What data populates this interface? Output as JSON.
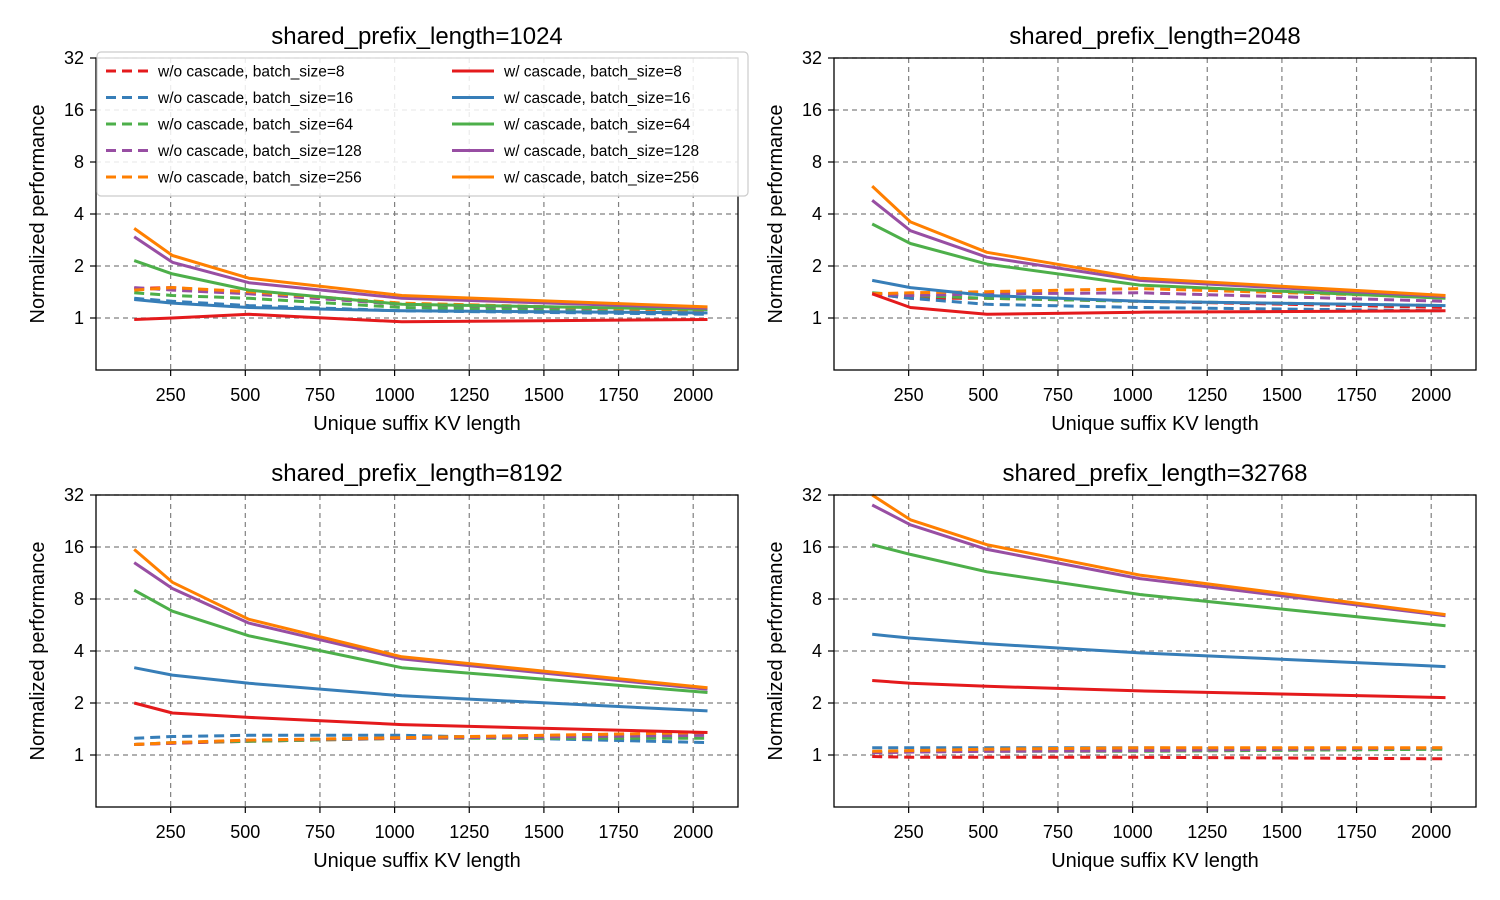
{
  "figure": {
    "colors": {
      "bs8": "#e41a1c",
      "bs16": "#377eb8",
      "bs64": "#4daf4a",
      "bs128": "#984ea3",
      "bs256": "#ff7f00",
      "grid": "#808080"
    },
    "legend": {
      "placement": "top-left of first panel",
      "entries": [
        {
          "label": "w/o cascade, batch_size=8",
          "color": "#e41a1c",
          "style": "dashed"
        },
        {
          "label": "w/o cascade, batch_size=16",
          "color": "#377eb8",
          "style": "dashed"
        },
        {
          "label": "w/o cascade, batch_size=64",
          "color": "#4daf4a",
          "style": "dashed"
        },
        {
          "label": "w/o cascade, batch_size=128",
          "color": "#984ea3",
          "style": "dashed"
        },
        {
          "label": "w/o cascade, batch_size=256",
          "color": "#ff7f00",
          "style": "dashed"
        },
        {
          "label": "w/ cascade, batch_size=8",
          "color": "#e41a1c",
          "style": "solid"
        },
        {
          "label": "w/ cascade, batch_size=16",
          "color": "#377eb8",
          "style": "solid"
        },
        {
          "label": "w/ cascade, batch_size=64",
          "color": "#4daf4a",
          "style": "solid"
        },
        {
          "label": "w/ cascade, batch_size=128",
          "color": "#984ea3",
          "style": "solid"
        },
        {
          "label": "w/ cascade, batch_size=256",
          "color": "#ff7f00",
          "style": "solid"
        }
      ]
    }
  },
  "chart_data": [
    {
      "type": "line",
      "title": "shared_prefix_length=1024",
      "xlabel": "Unique suffix KV length",
      "ylabel": "Normalized performance",
      "yscale": "log2",
      "ylim": [
        0.5,
        32
      ],
      "xlim": [
        0,
        2150
      ],
      "xticks": [
        250,
        500,
        750,
        1000,
        1250,
        1500,
        1750,
        2000
      ],
      "yticks": [
        1,
        2,
        4,
        8,
        16,
        32
      ],
      "grid": true,
      "x": [
        128,
        256,
        512,
        1024,
        2048
      ],
      "series": [
        {
          "name": "w/o cascade, batch_size=8",
          "values": [
            1.48,
            1.5,
            1.4,
            1.2,
            1.07
          ]
        },
        {
          "name": "w/o cascade, batch_size=16",
          "values": [
            1.3,
            1.25,
            1.18,
            1.1,
            1.05
          ]
        },
        {
          "name": "w/o cascade, batch_size=64",
          "values": [
            1.4,
            1.35,
            1.3,
            1.15,
            1.08
          ]
        },
        {
          "name": "w/o cascade, batch_size=128",
          "values": [
            1.5,
            1.45,
            1.38,
            1.2,
            1.1
          ]
        },
        {
          "name": "w/o cascade, batch_size=256",
          "values": [
            1.45,
            1.5,
            1.42,
            1.22,
            1.1
          ]
        },
        {
          "name": "w/ cascade, batch_size=8",
          "values": [
            0.98,
            1.0,
            1.05,
            0.95,
            0.98
          ]
        },
        {
          "name": "w/ cascade, batch_size=16",
          "values": [
            1.28,
            1.22,
            1.15,
            1.1,
            1.07
          ]
        },
        {
          "name": "w/ cascade, batch_size=64",
          "values": [
            2.15,
            1.8,
            1.45,
            1.2,
            1.12
          ]
        },
        {
          "name": "w/ cascade, batch_size=128",
          "values": [
            2.95,
            2.1,
            1.6,
            1.3,
            1.14
          ]
        },
        {
          "name": "w/ cascade, batch_size=256",
          "values": [
            3.3,
            2.3,
            1.7,
            1.35,
            1.16
          ]
        }
      ]
    },
    {
      "type": "line",
      "title": "shared_prefix_length=2048",
      "xlabel": "Unique suffix KV length",
      "ylabel": "Normalized performance",
      "yscale": "log2",
      "ylim": [
        0.5,
        32
      ],
      "xlim": [
        0,
        2150
      ],
      "xticks": [
        250,
        500,
        750,
        1000,
        1250,
        1500,
        1750,
        2000
      ],
      "yticks": [
        1,
        2,
        4,
        8,
        16,
        32
      ],
      "grid": true,
      "x": [
        128,
        256,
        512,
        1024,
        2048
      ],
      "series": [
        {
          "name": "w/o cascade, batch_size=8",
          "values": [
            1.38,
            1.3,
            1.3,
            1.25,
            1.15
          ]
        },
        {
          "name": "w/o cascade, batch_size=16",
          "values": [
            1.38,
            1.3,
            1.2,
            1.15,
            1.1
          ]
        },
        {
          "name": "w/o cascade, batch_size=64",
          "values": [
            1.4,
            1.35,
            1.3,
            1.25,
            1.18
          ]
        },
        {
          "name": "w/o cascade, batch_size=128",
          "values": [
            1.38,
            1.35,
            1.38,
            1.4,
            1.25
          ]
        },
        {
          "name": "w/o cascade, batch_size=256",
          "values": [
            1.38,
            1.4,
            1.42,
            1.48,
            1.32
          ]
        },
        {
          "name": "w/ cascade, batch_size=8",
          "values": [
            1.38,
            1.15,
            1.05,
            1.08,
            1.1
          ]
        },
        {
          "name": "w/ cascade, batch_size=16",
          "values": [
            1.65,
            1.5,
            1.35,
            1.25,
            1.18
          ]
        },
        {
          "name": "w/ cascade, batch_size=64",
          "values": [
            3.5,
            2.7,
            2.05,
            1.55,
            1.3
          ]
        },
        {
          "name": "w/ cascade, batch_size=128",
          "values": [
            4.8,
            3.2,
            2.25,
            1.65,
            1.33
          ]
        },
        {
          "name": "w/ cascade, batch_size=256",
          "values": [
            5.8,
            3.6,
            2.4,
            1.7,
            1.35
          ]
        }
      ]
    },
    {
      "type": "line",
      "title": "shared_prefix_length=8192",
      "xlabel": "Unique suffix KV length",
      "ylabel": "Normalized performance",
      "yscale": "log2",
      "ylim": [
        0.5,
        32
      ],
      "xlim": [
        0,
        2150
      ],
      "xticks": [
        250,
        500,
        750,
        1000,
        1250,
        1500,
        1750,
        2000
      ],
      "yticks": [
        1,
        2,
        4,
        8,
        16,
        32
      ],
      "grid": true,
      "x": [
        128,
        256,
        512,
        1024,
        2048
      ],
      "series": [
        {
          "name": "w/o cascade, batch_size=8",
          "values": [
            1.15,
            1.17,
            1.2,
            1.25,
            1.35
          ]
        },
        {
          "name": "w/o cascade, batch_size=16",
          "values": [
            1.25,
            1.28,
            1.3,
            1.3,
            1.18
          ]
        },
        {
          "name": "w/o cascade, batch_size=64",
          "values": [
            1.15,
            1.18,
            1.2,
            1.25,
            1.25
          ]
        },
        {
          "name": "w/o cascade, batch_size=128",
          "values": [
            1.15,
            1.17,
            1.22,
            1.25,
            1.3
          ]
        },
        {
          "name": "w/o cascade, batch_size=256",
          "values": [
            1.15,
            1.18,
            1.22,
            1.26,
            1.35
          ]
        },
        {
          "name": "w/ cascade, batch_size=8",
          "values": [
            2.0,
            1.75,
            1.65,
            1.5,
            1.35
          ]
        },
        {
          "name": "w/ cascade, batch_size=16",
          "values": [
            3.2,
            2.9,
            2.6,
            2.2,
            1.8
          ]
        },
        {
          "name": "w/ cascade, batch_size=64",
          "values": [
            9.0,
            6.8,
            4.9,
            3.2,
            2.3
          ]
        },
        {
          "name": "w/ cascade, batch_size=128",
          "values": [
            13.0,
            9.2,
            5.8,
            3.6,
            2.4
          ]
        },
        {
          "name": "w/ cascade, batch_size=256",
          "values": [
            15.5,
            10.0,
            6.1,
            3.7,
            2.45
          ]
        }
      ]
    },
    {
      "type": "line",
      "title": "shared_prefix_length=32768",
      "xlabel": "Unique suffix KV length",
      "ylabel": "Normalized performance",
      "yscale": "log2",
      "ylim": [
        0.5,
        32
      ],
      "xlim": [
        0,
        2150
      ],
      "xticks": [
        250,
        500,
        750,
        1000,
        1250,
        1500,
        1750,
        2000
      ],
      "yticks": [
        1,
        2,
        4,
        8,
        16,
        32
      ],
      "grid": true,
      "x": [
        128,
        256,
        512,
        1024,
        2048
      ],
      "series": [
        {
          "name": "w/o cascade, batch_size=8",
          "values": [
            0.98,
            0.97,
            0.97,
            0.97,
            0.95
          ]
        },
        {
          "name": "w/o cascade, batch_size=16",
          "values": [
            1.1,
            1.1,
            1.1,
            1.1,
            1.08
          ]
        },
        {
          "name": "w/o cascade, batch_size=64",
          "values": [
            1.03,
            1.05,
            1.05,
            1.05,
            1.08
          ]
        },
        {
          "name": "w/o cascade, batch_size=128",
          "values": [
            1.03,
            1.04,
            1.05,
            1.06,
            1.1
          ]
        },
        {
          "name": "w/o cascade, batch_size=256",
          "values": [
            1.05,
            1.06,
            1.08,
            1.1,
            1.1
          ]
        },
        {
          "name": "w/ cascade, batch_size=8",
          "values": [
            2.7,
            2.6,
            2.5,
            2.35,
            2.15
          ]
        },
        {
          "name": "w/ cascade, batch_size=16",
          "values": [
            5.0,
            4.75,
            4.4,
            3.9,
            3.25
          ]
        },
        {
          "name": "w/ cascade, batch_size=64",
          "values": [
            16.5,
            14.5,
            11.5,
            8.5,
            5.6
          ]
        },
        {
          "name": "w/ cascade, batch_size=128",
          "values": [
            28.0,
            21.5,
            15.5,
            10.5,
            6.4
          ]
        },
        {
          "name": "w/ cascade, batch_size=256",
          "values": [
            32.0,
            23.0,
            16.5,
            11.0,
            6.5
          ]
        }
      ]
    }
  ]
}
